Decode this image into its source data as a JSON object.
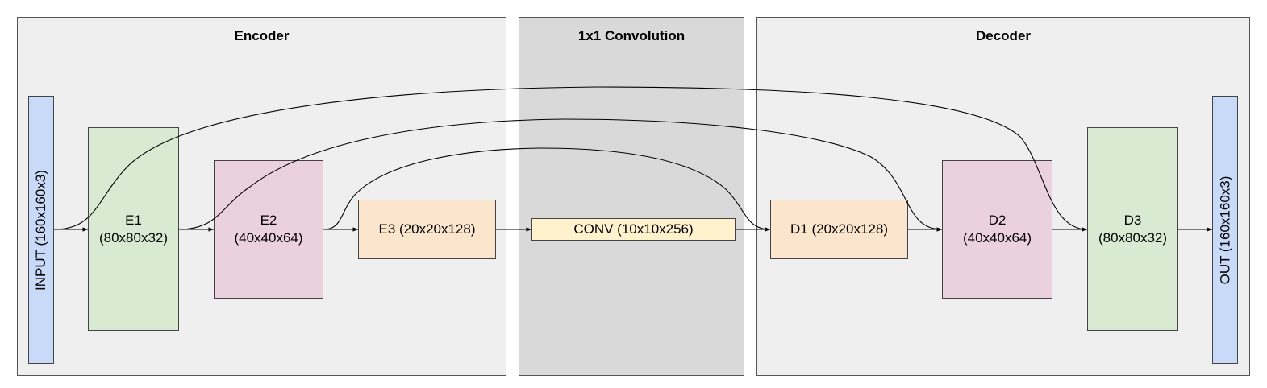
{
  "colors": {
    "panel_bg": "#efefef",
    "conv_panel_bg": "#d9d9d9",
    "io": "#c9daf8",
    "level1": "#d9ead3",
    "level2": "#ead1dc",
    "level3": "#fce5cd",
    "bottleneck": "#fff2cc"
  },
  "panels": {
    "encoder": "Encoder",
    "conv": "1x1 Convolution",
    "decoder": "Decoder"
  },
  "blocks": {
    "input": "INPUT (160x160x3)",
    "e1": {
      "line1": "E1",
      "line2": "(80x80x32)"
    },
    "e2": {
      "line1": "E2",
      "line2": "(40x40x64)"
    },
    "e3": "E3 (20x20x128)",
    "conv": "CONV (10x10x256)",
    "d1": "D1 (20x20x128)",
    "d2": {
      "line1": "D2",
      "line2": "(40x40x64)"
    },
    "d3": {
      "line1": "D3",
      "line2": "(80x80x32)"
    },
    "out": "OUT  (160x160x3)"
  },
  "connections": [
    {
      "from": "input",
      "to": "e1",
      "kind": "sequential"
    },
    {
      "from": "e1",
      "to": "e2",
      "kind": "sequential"
    },
    {
      "from": "e2",
      "to": "e3",
      "kind": "sequential"
    },
    {
      "from": "e3",
      "to": "conv",
      "kind": "sequential"
    },
    {
      "from": "conv",
      "to": "d1",
      "kind": "sequential"
    },
    {
      "from": "d1",
      "to": "d2",
      "kind": "sequential"
    },
    {
      "from": "d2",
      "to": "d3",
      "kind": "sequential"
    },
    {
      "from": "d3",
      "to": "out",
      "kind": "sequential"
    },
    {
      "from": "input",
      "to": "d3",
      "kind": "skip"
    },
    {
      "from": "e1",
      "to": "d2",
      "kind": "skip"
    },
    {
      "from": "e2",
      "to": "d1",
      "kind": "skip"
    }
  ]
}
